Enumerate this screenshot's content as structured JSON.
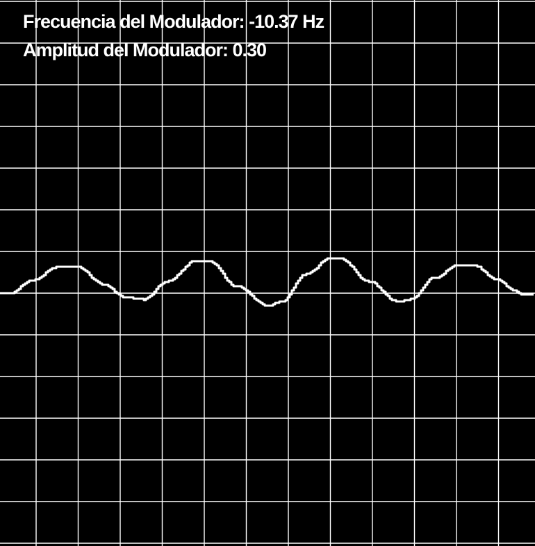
{
  "colors": {
    "background": "#000000",
    "grid": "#ffffff",
    "trace": "#ffffff",
    "text": "#ffffff"
  },
  "readouts": {
    "frequency_label": "Frecuencia del Modulador:",
    "frequency_value": "-10.37",
    "frequency_unit": "Hz",
    "amplitude_label": "Amplitud del Modulador:",
    "amplitude_value": "0.30"
  }
}
